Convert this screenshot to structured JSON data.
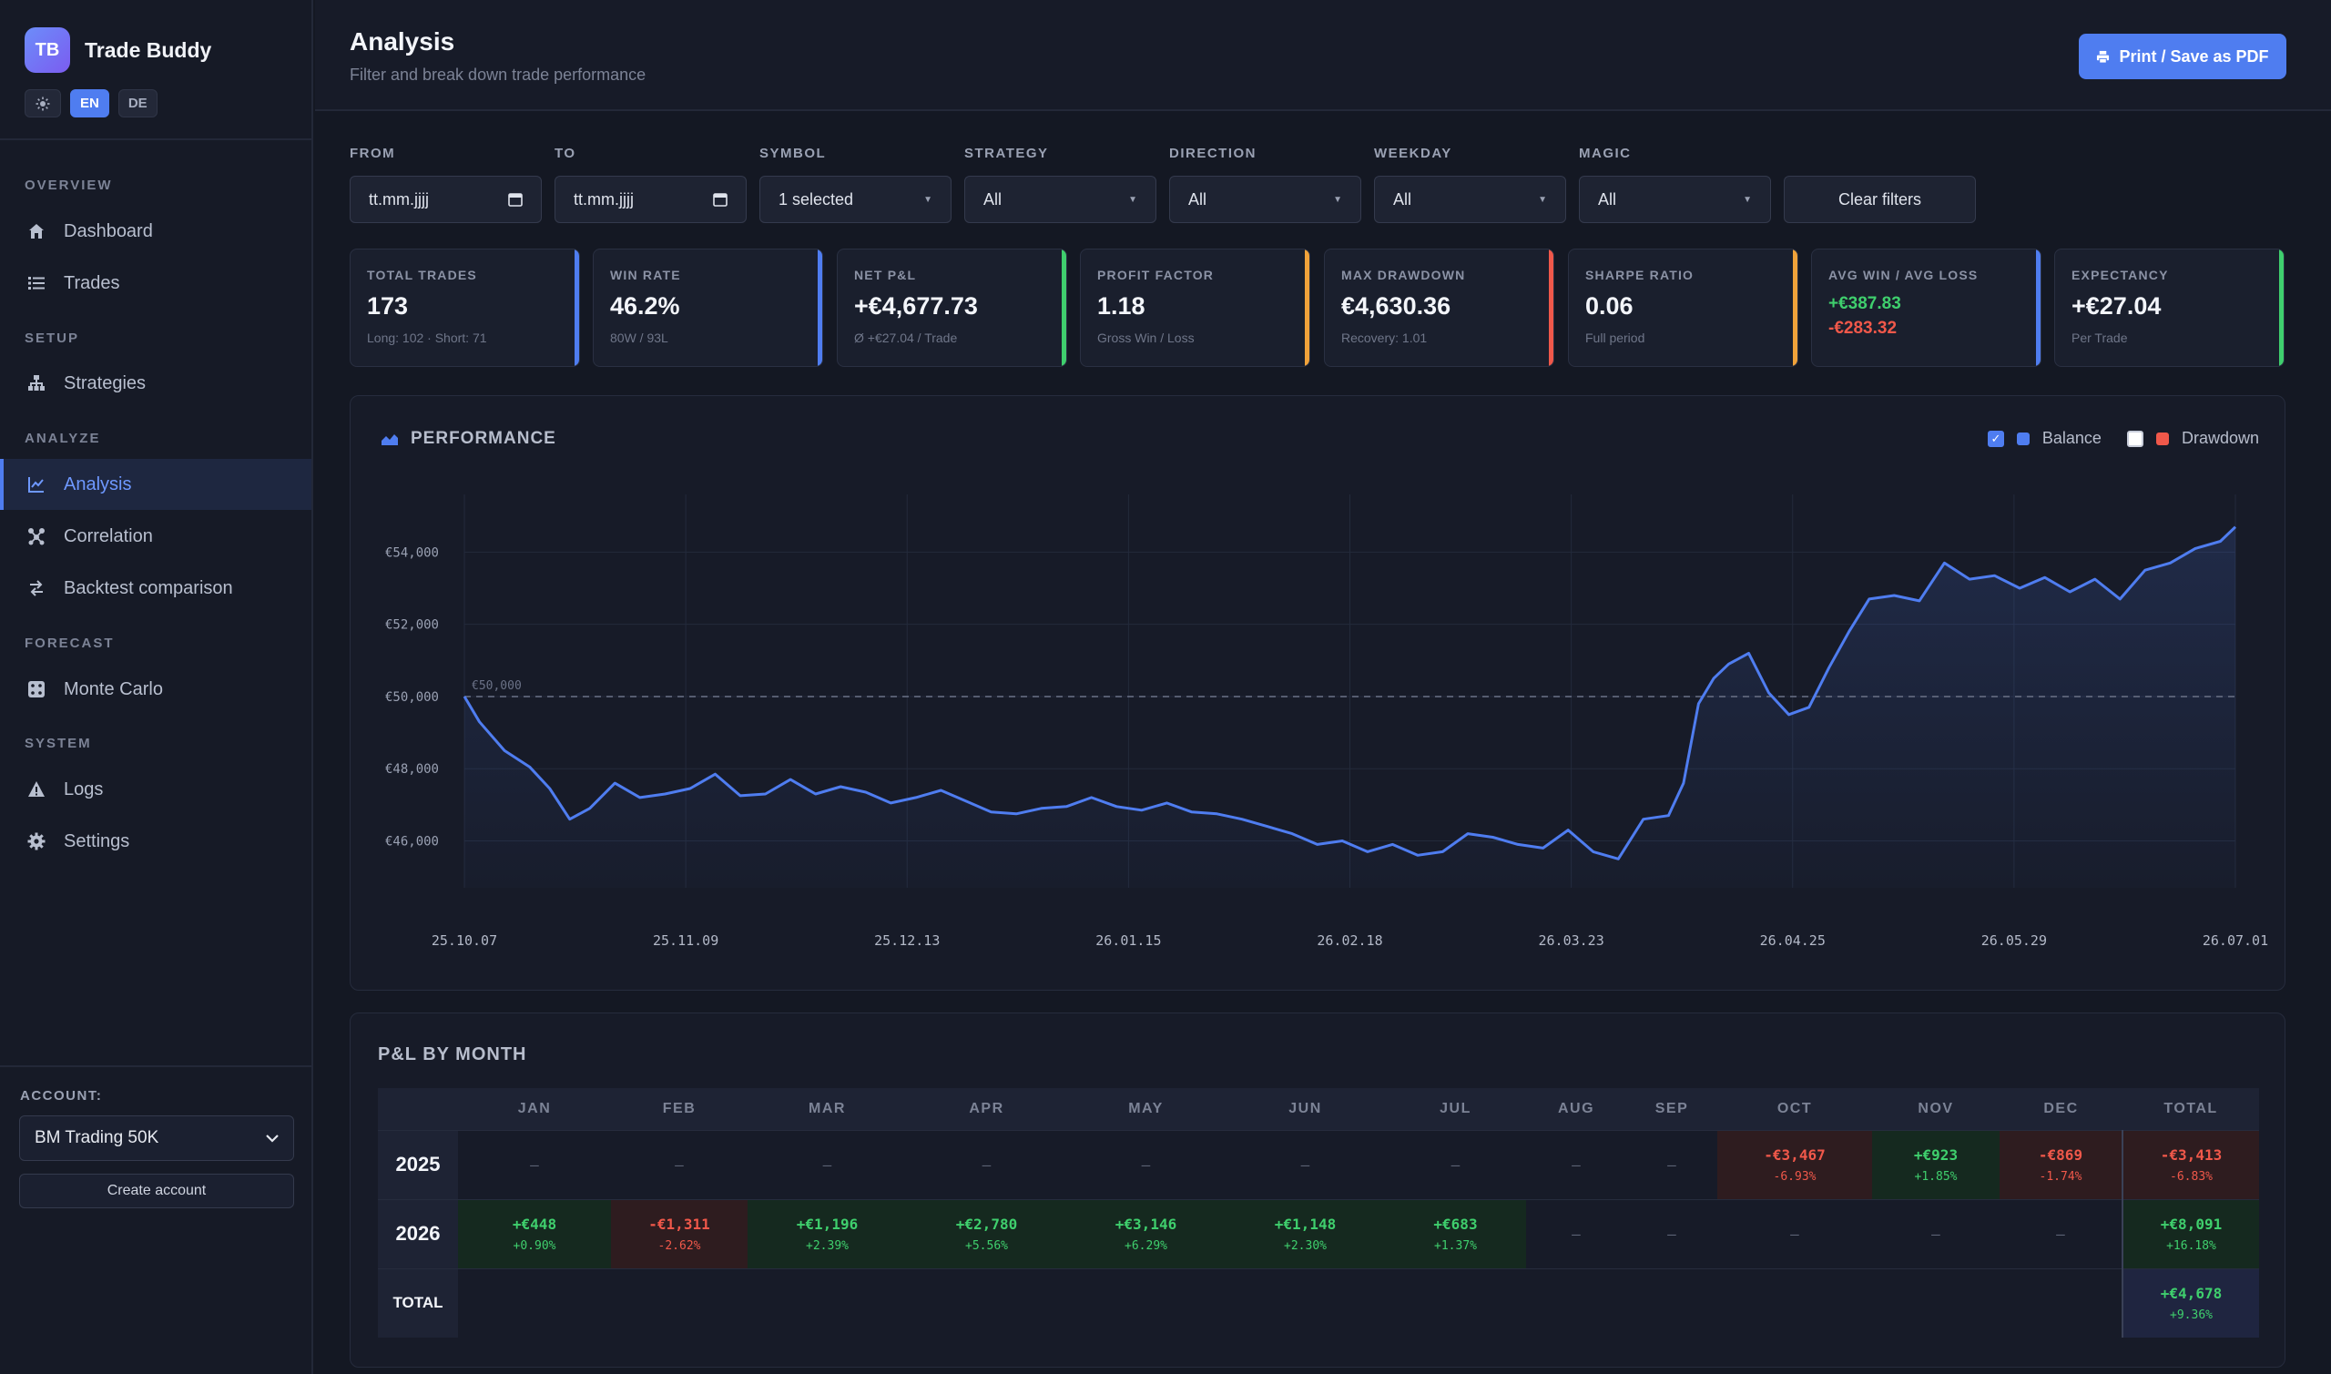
{
  "app": {
    "logo": "TB",
    "name": "Trade Buddy",
    "theme_icon": "sun-icon",
    "langs": [
      "EN",
      "DE"
    ],
    "active_lang": "EN"
  },
  "nav": {
    "sections": [
      "OVERVIEW",
      "SETUP",
      "ANALYZE",
      "FORECAST",
      "SYSTEM"
    ],
    "items": [
      {
        "label": "Dashboard",
        "icon": "home-icon"
      },
      {
        "label": "Trades",
        "icon": "list-icon"
      },
      {
        "label": "Strategies",
        "icon": "hierarchy-icon"
      },
      {
        "label": "Analysis",
        "icon": "line-chart-icon",
        "active": true
      },
      {
        "label": "Correlation",
        "icon": "network-icon"
      },
      {
        "label": "Backtest comparison",
        "icon": "swap-icon"
      },
      {
        "label": "Monte Carlo",
        "icon": "dice-icon"
      },
      {
        "label": "Logs",
        "icon": "warning-icon"
      },
      {
        "label": "Settings",
        "icon": "gear-icon"
      }
    ]
  },
  "account": {
    "label": "ACCOUNT:",
    "selected": "BM Trading 50K",
    "create": "Create account"
  },
  "header": {
    "title": "Analysis",
    "subtitle": "Filter and break down trade performance",
    "print": "Print / Save as PDF"
  },
  "filters": [
    {
      "label": "FROM",
      "value": "tt.mm.jjjj"
    },
    {
      "label": "TO",
      "value": "tt.mm.jjjj"
    },
    {
      "label": "SYMBOL",
      "value": "1 selected"
    },
    {
      "label": "STRATEGY",
      "value": "All"
    },
    {
      "label": "DIRECTION",
      "value": "All"
    },
    {
      "label": "WEEKDAY",
      "value": "All"
    },
    {
      "label": "MAGIC",
      "value": "All"
    }
  ],
  "clear_filters": "Clear filters",
  "kpis": [
    {
      "label": "TOTAL TRADES",
      "value": "173",
      "sub": "Long: 102 · Short: 71",
      "color": "#4f7df0"
    },
    {
      "label": "WIN RATE",
      "value": "46.2%",
      "sub": "80W / 93L",
      "color": "#4f7df0"
    },
    {
      "label": "NET P&L",
      "value": "+€4,677.73",
      "sub": "Ø +€27.04 / Trade",
      "color": "#3fcf6d",
      "tone": "pos"
    },
    {
      "label": "PROFIT FACTOR",
      "value": "1.18",
      "sub": "Gross Win / Loss",
      "color": "#f0a23a"
    },
    {
      "label": "MAX DRAWDOWN",
      "value": "€4,630.36",
      "sub": "Recovery: 1.01",
      "color": "#f0584a",
      "tone": "neg"
    },
    {
      "label": "SHARPE RATIO",
      "value": "0.06",
      "sub": "Full period",
      "color": "#f0a23a"
    },
    {
      "label": "AVG WIN / AVG LOSS",
      "win": "+€387.83",
      "loss": "-€283.32",
      "color": "#4f7df0"
    },
    {
      "label": "EXPECTANCY",
      "value": "+€27.04",
      "sub": "Per Trade",
      "color": "#3fcf6d",
      "tone": "pos"
    }
  ],
  "performance": {
    "title": "PERFORMANCE",
    "legend": [
      {
        "name": "Balance",
        "checked": true,
        "color": "#4f7df0"
      },
      {
        "name": "Drawdown",
        "checked": false,
        "color": "#f0584a"
      }
    ]
  },
  "chart_data": {
    "type": "line",
    "series": [
      {
        "name": "Balance",
        "points": [
          [
            0,
            50000
          ],
          [
            3,
            49300
          ],
          [
            8,
            48500
          ],
          [
            13,
            48050
          ],
          [
            17,
            47450
          ],
          [
            21,
            46600
          ],
          [
            25,
            46900
          ],
          [
            30,
            47600
          ],
          [
            35,
            47200
          ],
          [
            40,
            47300
          ],
          [
            45,
            47450
          ],
          [
            50,
            47850
          ],
          [
            55,
            47250
          ],
          [
            60,
            47300
          ],
          [
            65,
            47700
          ],
          [
            70,
            47300
          ],
          [
            75,
            47500
          ],
          [
            80,
            47350
          ],
          [
            85,
            47050
          ],
          [
            90,
            47200
          ],
          [
            95,
            47400
          ],
          [
            100,
            47100
          ],
          [
            105,
            46800
          ],
          [
            110,
            46750
          ],
          [
            115,
            46900
          ],
          [
            120,
            46950
          ],
          [
            125,
            47200
          ],
          [
            130,
            46950
          ],
          [
            135,
            46850
          ],
          [
            140,
            47050
          ],
          [
            145,
            46800
          ],
          [
            150,
            46750
          ],
          [
            155,
            46600
          ],
          [
            160,
            46400
          ],
          [
            165,
            46200
          ],
          [
            170,
            45900
          ],
          [
            175,
            46000
          ],
          [
            180,
            45700
          ],
          [
            185,
            45900
          ],
          [
            190,
            45600
          ],
          [
            195,
            45700
          ],
          [
            200,
            46200
          ],
          [
            205,
            46100
          ],
          [
            210,
            45900
          ],
          [
            215,
            45800
          ],
          [
            220,
            46300
          ],
          [
            225,
            45700
          ],
          [
            230,
            45500
          ],
          [
            235,
            46600
          ],
          [
            240,
            46700
          ],
          [
            243,
            47600
          ],
          [
            246,
            49800
          ],
          [
            249,
            50500
          ],
          [
            252,
            50900
          ],
          [
            256,
            51200
          ],
          [
            260,
            50100
          ],
          [
            264,
            49500
          ],
          [
            268,
            49700
          ],
          [
            272,
            50800
          ],
          [
            276,
            51800
          ],
          [
            280,
            52700
          ],
          [
            285,
            52800
          ],
          [
            290,
            52650
          ],
          [
            295,
            53700
          ],
          [
            300,
            53250
          ],
          [
            305,
            53350
          ],
          [
            310,
            53000
          ],
          [
            315,
            53300
          ],
          [
            320,
            52900
          ],
          [
            325,
            53250
          ],
          [
            330,
            52700
          ],
          [
            335,
            53500
          ],
          [
            340,
            53700
          ],
          [
            345,
            54100
          ],
          [
            350,
            54300
          ],
          [
            353,
            54700
          ]
        ]
      }
    ],
    "x_tick_labels": [
      "25.10.07",
      "25.11.09",
      "25.12.13",
      "26.01.15",
      "26.02.18",
      "26.03.23",
      "26.04.25",
      "26.05.29",
      "26.07.01"
    ],
    "y_ticks": [
      46000,
      48000,
      50000,
      52000,
      54000
    ],
    "y_tick_labels": [
      "€46,000",
      "€48,000",
      "€50,000",
      "€52,000",
      "€54,000"
    ],
    "x_range": [
      0,
      353
    ],
    "ylim": [
      44700,
      55600
    ],
    "reference_line": {
      "value": 50000,
      "label": "€50,000"
    },
    "grid": true
  },
  "monthly": {
    "title": "P&L BY MONTH",
    "columns": [
      "JAN",
      "FEB",
      "MAR",
      "APR",
      "MAY",
      "JUN",
      "JUL",
      "AUG",
      "SEP",
      "OCT",
      "NOV",
      "DEC",
      "TOTAL"
    ],
    "rows": [
      {
        "year": "2025",
        "cells": [
          {
            "v": "–"
          },
          {
            "v": "–"
          },
          {
            "v": "–"
          },
          {
            "v": "–"
          },
          {
            "v": "–"
          },
          {
            "v": "–"
          },
          {
            "v": "–"
          },
          {
            "v": "–"
          },
          {
            "v": "–"
          },
          {
            "v": "-€3,467",
            "p": "-6.93%",
            "tone": "neg"
          },
          {
            "v": "+€923",
            "p": "+1.85%",
            "tone": "pos"
          },
          {
            "v": "-€869",
            "p": "-1.74%",
            "tone": "neg"
          },
          {
            "v": "-€3,413",
            "p": "-6.83%",
            "tone": "neg"
          }
        ]
      },
      {
        "year": "2026",
        "cells": [
          {
            "v": "+€448",
            "p": "+0.90%",
            "tone": "pos"
          },
          {
            "v": "-€1,311",
            "p": "-2.62%",
            "tone": "neg"
          },
          {
            "v": "+€1,196",
            "p": "+2.39%",
            "tone": "pos"
          },
          {
            "v": "+€2,780",
            "p": "+5.56%",
            "tone": "pos"
          },
          {
            "v": "+€3,146",
            "p": "+6.29%",
            "tone": "pos"
          },
          {
            "v": "+€1,148",
            "p": "+2.30%",
            "tone": "pos"
          },
          {
            "v": "+€683",
            "p": "+1.37%",
            "tone": "pos"
          },
          {
            "v": "–"
          },
          {
            "v": "–"
          },
          {
            "v": "–"
          },
          {
            "v": "–"
          },
          {
            "v": "–"
          },
          {
            "v": "+€8,091",
            "p": "+16.18%",
            "tone": "pos"
          }
        ]
      }
    ],
    "total_row": {
      "label": "TOTAL",
      "value": "+€4,678",
      "pct": "+9.36%"
    }
  }
}
